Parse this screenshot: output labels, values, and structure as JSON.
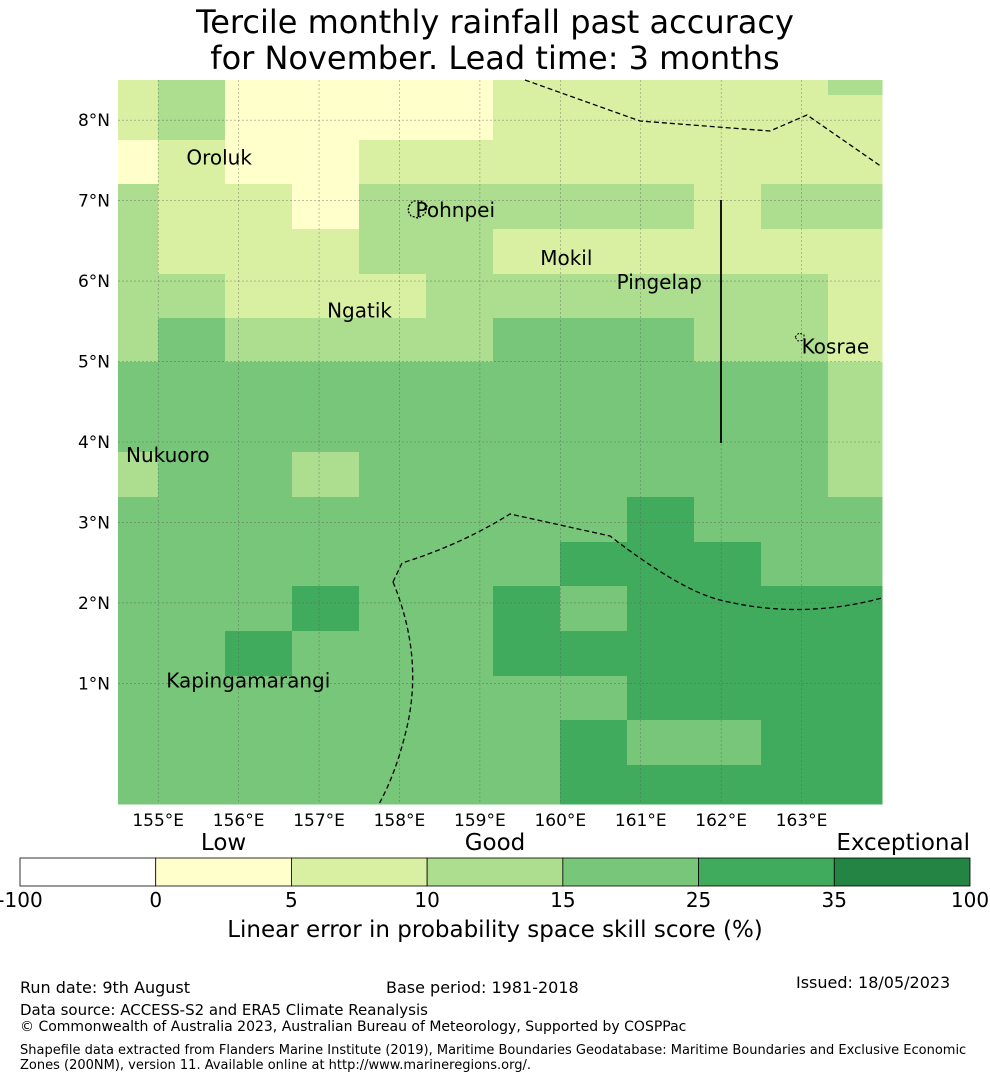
{
  "title": {
    "line1": "Tercile monthly rainfall past accuracy",
    "line2": "for November. Lead time: 3 months"
  },
  "map": {
    "lon_range": [
      154.5,
      164.0
    ],
    "lat_range": [
      -0.5,
      8.5
    ],
    "lon_ticks": [
      {
        "value": 155,
        "label": "155°E"
      },
      {
        "value": 156,
        "label": "156°E"
      },
      {
        "value": 157,
        "label": "157°E"
      },
      {
        "value": 158,
        "label": "158°E"
      },
      {
        "value": 159,
        "label": "159°E"
      },
      {
        "value": 160,
        "label": "160°E"
      },
      {
        "value": 161,
        "label": "161°E"
      },
      {
        "value": 162,
        "label": "162°E"
      },
      {
        "value": 163,
        "label": "163°E"
      }
    ],
    "lat_ticks": [
      {
        "value": 8,
        "label": "8°N"
      },
      {
        "value": 7,
        "label": "7°N"
      },
      {
        "value": 6,
        "label": "6°N"
      },
      {
        "value": 5,
        "label": "5°N"
      },
      {
        "value": 4,
        "label": "4°N"
      },
      {
        "value": 3,
        "label": "3°N"
      },
      {
        "value": 2,
        "label": "2°N"
      },
      {
        "value": 1,
        "label": "1°N"
      }
    ],
    "skill_class_colors": [
      "#ffffff",
      "#ffffcc",
      "#d9f0a3",
      "#addd8e",
      "#78c679",
      "#41ab5d",
      "#238443"
    ],
    "places": [
      {
        "name": "Oroluk",
        "lon": 155.35,
        "lat": 7.45
      },
      {
        "name": "Pohnpei",
        "lon": 158.2,
        "lat": 6.8
      },
      {
        "name": "Mokil",
        "lon": 159.75,
        "lat": 6.2
      },
      {
        "name": "Pingelap",
        "lon": 160.7,
        "lat": 5.9
      },
      {
        "name": "Ngatik",
        "lon": 157.1,
        "lat": 5.55
      },
      {
        "name": "Kosrae",
        "lon": 163.0,
        "lat": 5.1
      },
      {
        "name": "Nukuoro",
        "lon": 154.6,
        "lat": 3.75
      },
      {
        "name": "Kapingamarangi",
        "lon": 155.1,
        "lat": 0.95
      }
    ]
  },
  "colorbar": {
    "categories": [
      {
        "label": "Low",
        "value": 2.5
      },
      {
        "label": "Good",
        "value": 12.5
      },
      {
        "label": "Exceptional",
        "value": 100
      }
    ],
    "boundaries": [
      -100,
      0,
      5,
      10,
      15,
      25,
      35,
      100
    ],
    "tick_labels": [
      "-100",
      "0",
      "5",
      "10",
      "15",
      "25",
      "35",
      "100"
    ],
    "colors": [
      "#ffffff",
      "#ffffcc",
      "#d9f0a3",
      "#addd8e",
      "#78c679",
      "#41ab5d",
      "#238443"
    ],
    "label": "Linear error in probability space skill score (%)"
  },
  "footer": {
    "run_date": "Run date: 9th August",
    "base_period": "Base period: 1981-2018",
    "issued": "Issued: 18/05/2023",
    "data_source": "Data source: ACCESS-S2 and ERA5 Climate Reanalysis",
    "copyright": "© Commonwealth of Australia 2023, Australian Bureau of Meteorology, Supported by COSPPac",
    "shapefile": "Shapefile data extracted from Flanders Marine Institute (2019), Maritime Boundaries Geodatabase: Maritime Boundaries and Exclusive Economic Zones (200NM), version 11. Available online at http://www.marineregions.org/."
  }
}
